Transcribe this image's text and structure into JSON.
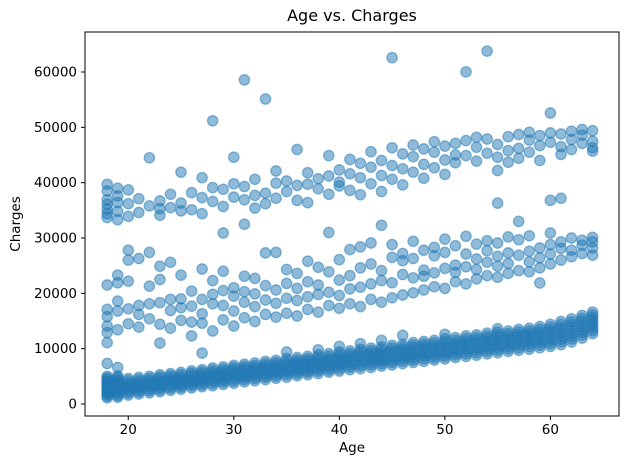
{
  "chart_data": {
    "type": "scatter",
    "title": "Age vs. Charges",
    "xlabel": "Age",
    "ylabel": "Charges",
    "xlim": [
      15.9,
      66.5
    ],
    "ylim": [
      -2170,
      67230
    ],
    "x_ticks": [
      20,
      30,
      40,
      50,
      60
    ],
    "y_ticks": [
      0,
      10000,
      20000,
      30000,
      40000,
      50000,
      60000
    ],
    "grid": false,
    "legend": "none",
    "marker_color": "#1f77b4",
    "marker_alpha": 0.5,
    "points_by_age": {
      "18": [
        1120,
        1420,
        1720,
        2020,
        2310,
        2610,
        2910,
        3210,
        3510,
        3810,
        4100,
        4400,
        4700,
        5000,
        7320,
        11100,
        12900,
        14100,
        15800,
        17100,
        21500,
        33700,
        34400,
        35200,
        36100,
        36900,
        38500,
        39700
      ],
      "19": [
        1220,
        1540,
        1870,
        2190,
        2510,
        2840,
        3160,
        3480,
        3810,
        4130,
        4450,
        4780,
        5100,
        6600,
        13400,
        16800,
        18600,
        21900,
        23300,
        33300,
        34800,
        36400,
        37600,
        39000
      ],
      "20": [
        1600,
        1980,
        2350,
        2730,
        3100,
        3480,
        3850,
        4230,
        4600,
        14500,
        17200,
        22200,
        26000,
        27800,
        33900,
        36200,
        38700
      ],
      "21": [
        1800,
        2180,
        2550,
        2930,
        3300,
        3680,
        4050,
        4430,
        4800,
        13900,
        16200,
        17800,
        26300,
        34600,
        37100
      ],
      "22": [
        2000,
        2380,
        2750,
        3130,
        3500,
        3880,
        4250,
        4630,
        5000,
        15400,
        18100,
        21300,
        27400,
        35800,
        44500
      ],
      "23": [
        2200,
        2590,
        2980,
        3360,
        3750,
        4140,
        4530,
        4910,
        5300,
        11000,
        14400,
        18300,
        22500,
        24900,
        34100,
        35300,
        36700
      ],
      "24": [
        2450,
        2830,
        3210,
        3590,
        3980,
        4360,
        4740,
        5120,
        5500,
        13700,
        16900,
        18900,
        25600,
        35500,
        37900
      ],
      "25": [
        2650,
        3030,
        3410,
        3790,
        4180,
        4560,
        4940,
        5320,
        5700,
        15100,
        17400,
        19000,
        23300,
        34900,
        36300,
        41900
      ],
      "26": [
        2900,
        3290,
        3680,
        4060,
        4450,
        4840,
        5230,
        5610,
        6000,
        12300,
        14800,
        17700,
        20400,
        35100,
        38200
      ],
      "27": [
        3100,
        3490,
        3880,
        4260,
        4650,
        5040,
        5430,
        5810,
        6200,
        9200,
        14600,
        16300,
        18900,
        24400,
        34400,
        37300,
        40900
      ],
      "28": [
        3300,
        3700,
        4100,
        4500,
        4900,
        5300,
        5700,
        6100,
        6500,
        13200,
        18100,
        19800,
        22300,
        36600,
        39100,
        51190
      ],
      "29": [
        3550,
        3940,
        4340,
        4730,
        5130,
        5520,
        5910,
        6310,
        6700,
        15200,
        17800,
        20500,
        24000,
        30900,
        35700,
        38800
      ],
      "30": [
        3750,
        4160,
        4560,
        4970,
        5380,
        5780,
        6190,
        6590,
        7000,
        14100,
        16800,
        19500,
        21000,
        37400,
        39800,
        44600
      ],
      "31": [
        4000,
        4400,
        4800,
        5200,
        5600,
        6000,
        6400,
        6800,
        7200,
        15600,
        18400,
        20300,
        23100,
        32500,
        36900,
        39300,
        58570
      ],
      "32": [
        4200,
        4600,
        5000,
        5400,
        5800,
        6200,
        6600,
        7000,
        7400,
        14900,
        17600,
        19900,
        22700,
        35400,
        37700,
        40600
      ],
      "33": [
        4400,
        4810,
        5220,
        5640,
        6050,
        6460,
        6880,
        7290,
        7700,
        16200,
        18800,
        21400,
        27300,
        36200,
        38100,
        55130
      ],
      "34": [
        4650,
        5060,
        5460,
        5870,
        6280,
        6680,
        7090,
        7490,
        7900,
        15700,
        18200,
        20600,
        27400,
        37200,
        39900,
        42100
      ],
      "35": [
        4850,
        5270,
        5690,
        6110,
        6530,
        6940,
        7360,
        7780,
        8200,
        9400,
        16400,
        19100,
        21800,
        24300,
        38400,
        40300
      ],
      "36": [
        5100,
        5510,
        5920,
        6340,
        6750,
        7160,
        7580,
        7990,
        8400,
        15900,
        18700,
        20900,
        23600,
        36800,
        39500,
        46000
      ],
      "37": [
        5300,
        5710,
        6120,
        6540,
        6950,
        7360,
        7780,
        8190,
        8600,
        17100,
        19400,
        22100,
        25800,
        36400,
        39700,
        41800
      ],
      "38": [
        5500,
        5930,
        6350,
        6780,
        7200,
        7630,
        8050,
        8480,
        8900,
        9800,
        16600,
        19800,
        21500,
        24700,
        38900,
        40700
      ],
      "39": [
        5750,
        6170,
        6590,
        7010,
        7430,
        7840,
        8260,
        8680,
        9100,
        17800,
        20200,
        23900,
        31000,
        37900,
        41200,
        44900
      ],
      "40": [
        5950,
        6380,
        6810,
        7240,
        7680,
        8110,
        8540,
        8970,
        9400,
        10400,
        17300,
        19600,
        22400,
        26100,
        39400,
        40100,
        42300
      ],
      "41": [
        6200,
        6630,
        7050,
        7480,
        7900,
        8330,
        8750,
        9180,
        9600,
        18100,
        20800,
        23200,
        27900,
        38600,
        41600,
        44200
      ],
      "42": [
        6400,
        6840,
        7280,
        7710,
        8150,
        8590,
        9030,
        9460,
        9900,
        10900,
        17600,
        21100,
        24600,
        28400,
        37800,
        40900,
        43500
      ],
      "43": [
        6600,
        7040,
        7480,
        7910,
        8350,
        8790,
        9230,
        9660,
        10100,
        18900,
        21700,
        25300,
        29100,
        39800,
        42800,
        45600
      ],
      "44": [
        6850,
        7280,
        7710,
        8140,
        8580,
        9010,
        9440,
        9870,
        10300,
        11500,
        18400,
        22300,
        24100,
        32300,
        38400,
        41300,
        44000
      ],
      "45": [
        7050,
        7490,
        7940,
        8380,
        8830,
        9270,
        9720,
        10160,
        10600,
        19200,
        21900,
        26500,
        28800,
        40600,
        43100,
        46300,
        62590
      ],
      "46": [
        7300,
        7740,
        8180,
        8610,
        9050,
        9490,
        9930,
        10360,
        10800,
        12400,
        19700,
        23400,
        25900,
        27200,
        39600,
        42500,
        45200
      ],
      "47": [
        7500,
        7950,
        8400,
        8850,
        9300,
        9750,
        10200,
        10650,
        11100,
        20100,
        22800,
        26300,
        29400,
        41900,
        44700,
        46800
      ],
      "48": [
        7700,
        8150,
        8600,
        9050,
        9500,
        9950,
        10400,
        10850,
        11300,
        20600,
        23100,
        24200,
        27800,
        40800,
        43300,
        46100
      ],
      "49": [
        7950,
        8390,
        8840,
        9280,
        9730,
        10170,
        10620,
        11060,
        11500,
        21200,
        23700,
        26800,
        28300,
        42700,
        45500,
        47400
      ],
      "50": [
        8150,
        8610,
        9060,
        9520,
        9970,
        10430,
        10880,
        11340,
        11800,
        12600,
        20900,
        24500,
        27400,
        29800,
        41500,
        44100,
        46600
      ],
      "51": [
        8400,
        8850,
        9300,
        9750,
        10200,
        10650,
        11100,
        11550,
        12000,
        22100,
        23800,
        25100,
        28600,
        43600,
        45000,
        47100
      ],
      "52": [
        8600,
        9060,
        9530,
        9990,
        10450,
        10910,
        11380,
        11840,
        12300,
        21700,
        24800,
        27100,
        30300,
        44900,
        47600,
        60020
      ],
      "53": [
        8800,
        9260,
        9730,
        10190,
        10650,
        11110,
        11580,
        12040,
        12500,
        22600,
        24300,
        26200,
        28900,
        43900,
        46400,
        48200
      ],
      "54": [
        9050,
        9520,
        9990,
        10460,
        10920,
        11390,
        11860,
        12330,
        12800,
        23200,
        25600,
        27700,
        29500,
        45300,
        47900,
        63770
      ],
      "55": [
        9250,
        9720,
        10190,
        10660,
        11120,
        11590,
        12060,
        12530,
        13000,
        13600,
        22900,
        24900,
        26700,
        29100,
        36300,
        42200,
        44600,
        46900
      ],
      "56": [
        9500,
        9960,
        10430,
        10890,
        11350,
        11810,
        12280,
        12740,
        13200,
        23600,
        25400,
        27300,
        30200,
        43700,
        45800,
        48300
      ],
      "57": [
        9700,
        10180,
        10650,
        11130,
        11600,
        12080,
        12550,
        13030,
        13500,
        24100,
        26900,
        29700,
        33000,
        44400,
        46200,
        48700
      ],
      "58": [
        9900,
        10380,
        10850,
        11330,
        11800,
        12280,
        12750,
        13230,
        13700,
        23900,
        25700,
        27600,
        30400,
        45500,
        47700,
        49100
      ],
      "59": [
        10150,
        10630,
        11110,
        11590,
        12080,
        12560,
        13040,
        13520,
        14000,
        21870,
        24600,
        26400,
        28200,
        44000,
        46700,
        48500
      ],
      "60": [
        10400,
        10900,
        11400,
        11900,
        12400,
        12900,
        13400,
        13900,
        14400,
        25300,
        27100,
        28800,
        30900,
        36800,
        47300,
        49000,
        52590
      ],
      "61": [
        10700,
        11230,
        11750,
        12280,
        12800,
        13330,
        13850,
        14380,
        14900,
        26000,
        28100,
        29300,
        37200,
        45100,
        46500,
        48800
      ],
      "62": [
        11200,
        11730,
        12250,
        12780,
        13300,
        13830,
        14350,
        14880,
        15400,
        26600,
        27800,
        30000,
        46000,
        47800,
        49300
      ],
      "63": [
        11900,
        12410,
        12930,
        13440,
        13950,
        14460,
        14980,
        15490,
        16000,
        27200,
        28700,
        29600,
        47100,
        48600,
        49600
      ],
      "64": [
        12700,
        13190,
        13680,
        14160,
        14650,
        15140,
        15630,
        16110,
        16600,
        26900,
        28200,
        29300,
        30100,
        45700,
        46300,
        47500,
        49400
      ]
    }
  }
}
